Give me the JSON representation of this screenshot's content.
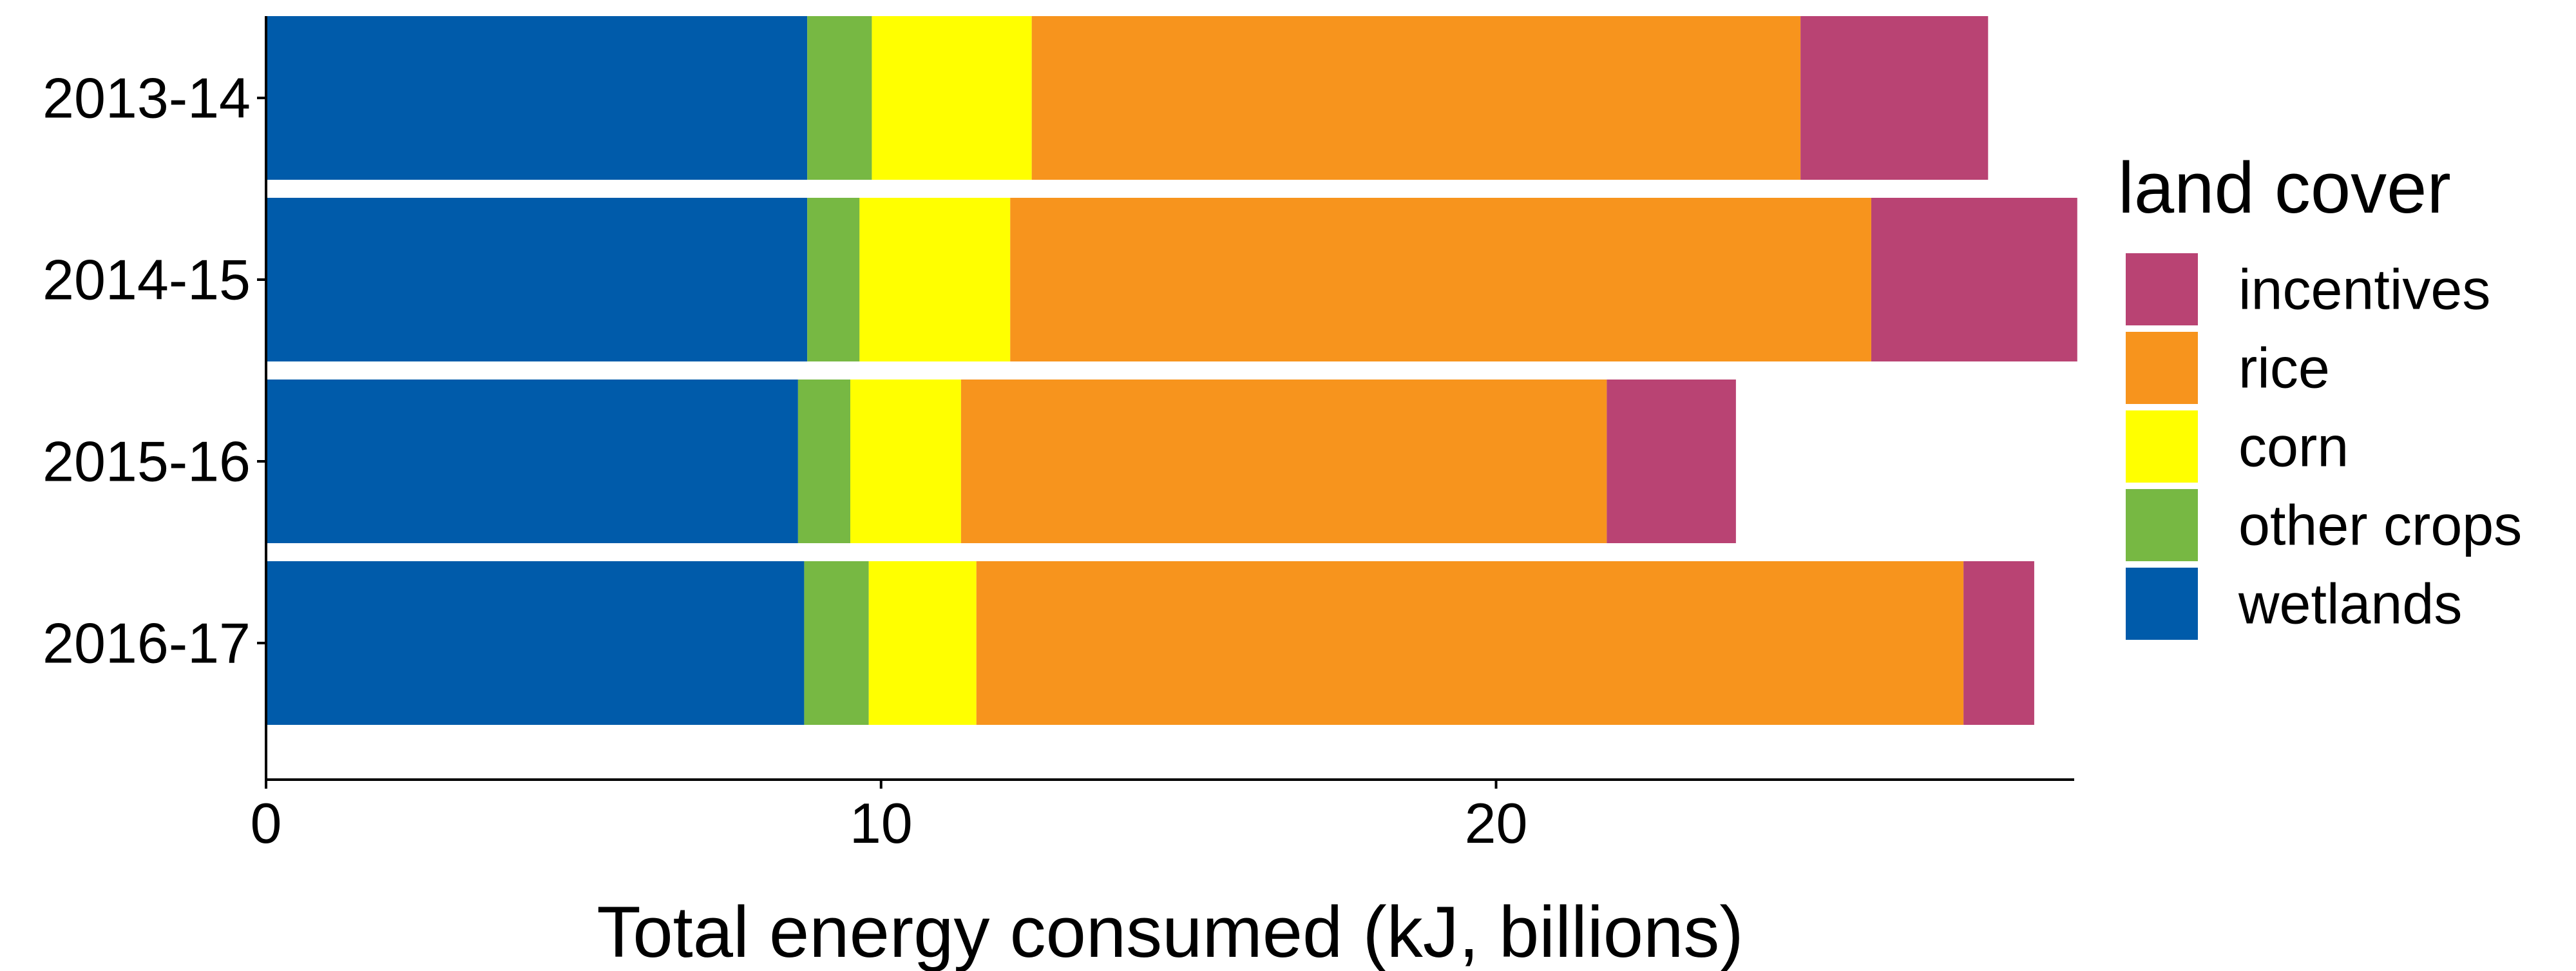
{
  "chart_data": {
    "type": "bar",
    "orientation": "horizontal",
    "stacked": true,
    "title": "",
    "xlabel": "Total energy consumed (kJ, billions)",
    "ylabel": "",
    "xlim": [
      0,
      29.4
    ],
    "xticks": [
      0,
      10,
      20
    ],
    "categories": [
      "2013-14",
      "2014-15",
      "2015-16",
      "2016-17"
    ],
    "series": [
      {
        "name": "wetlands",
        "color": "#005BAA",
        "values": [
          8.8,
          8.8,
          8.65,
          8.75
        ]
      },
      {
        "name": "other crops",
        "color": "#77B843",
        "values": [
          1.05,
          0.85,
          0.85,
          1.05
        ]
      },
      {
        "name": "corn",
        "color": "#FFFF00",
        "values": [
          2.6,
          2.45,
          1.8,
          1.75
        ]
      },
      {
        "name": "rice",
        "color": "#F7941D",
        "values": [
          12.5,
          14.0,
          10.5,
          16.05
        ]
      },
      {
        "name": "incentives",
        "color": "#B94373",
        "values": [
          3.05,
          3.35,
          2.1,
          1.15
        ]
      }
    ],
    "legend": {
      "title": "land cover",
      "position": "right",
      "order": [
        "incentives",
        "rice",
        "corn",
        "other crops",
        "wetlands"
      ]
    },
    "grid": false
  }
}
